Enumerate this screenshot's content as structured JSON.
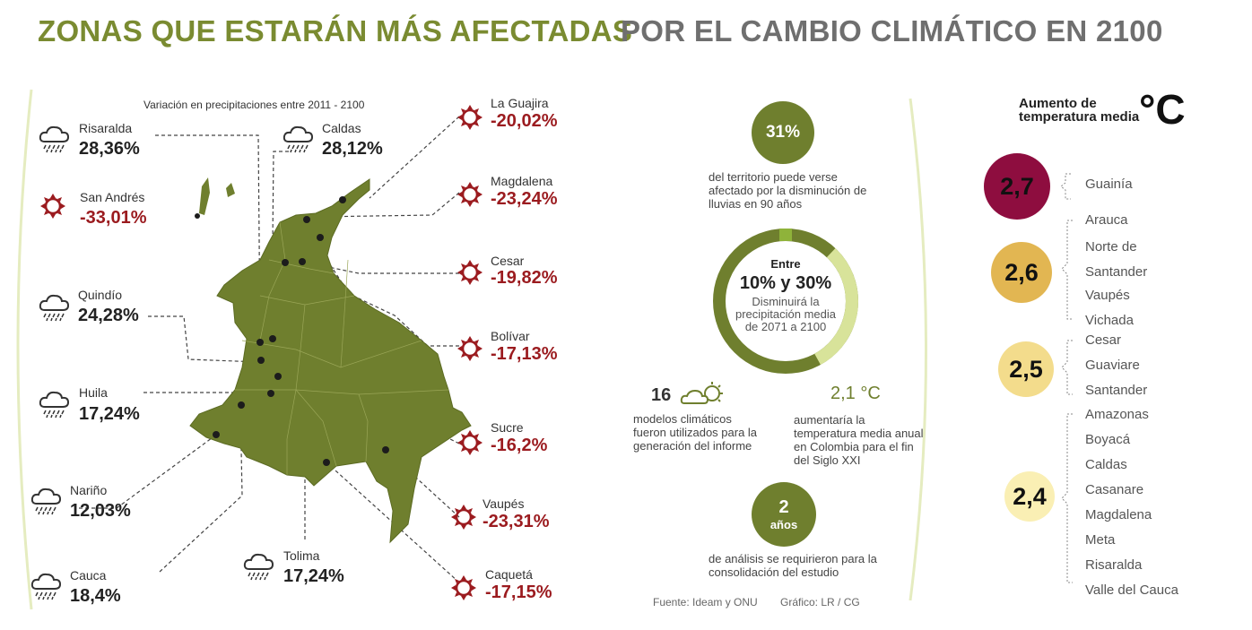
{
  "title": {
    "left": "ZONAS QUE ESTARÁN MÁS AFECTADAS",
    "right": "POR EL CAMBIO CLIMÁTICO EN 2100"
  },
  "map": {
    "subtitle": "Variación en precipitaciones entre 2011 - 2100",
    "rain_regions": [
      {
        "name": "Risaralda",
        "value": "28,36%"
      },
      {
        "name": "Caldas",
        "value": "28,12%"
      },
      {
        "name": "Quindío",
        "value": "24,28%"
      },
      {
        "name": "Huila",
        "value": "17,24%"
      },
      {
        "name": "Nariño",
        "value": "12,03%"
      },
      {
        "name": "Cauca",
        "value": "18,4%"
      },
      {
        "name": "Tolima",
        "value": "17,24%"
      }
    ],
    "sun_regions": [
      {
        "name": "San Andrés",
        "value": "-33,01%"
      },
      {
        "name": "La Guajira",
        "value": "-20,02%"
      },
      {
        "name": "Magdalena",
        "value": "-23,24%"
      },
      {
        "name": "Cesar",
        "value": "-19,82%"
      },
      {
        "name": "Bolívar",
        "value": "-17,13%"
      },
      {
        "name": "Sucre",
        "value": "-16,2%"
      },
      {
        "name": "Vaupés",
        "value": "-23,31%"
      },
      {
        "name": "Caquetá",
        "value": "-17,15%"
      }
    ]
  },
  "stats": {
    "territory_pct": "31%",
    "territory_text": "del territorio puede verse afectado por la disminución de lluvias en 90 años",
    "donut_fraction": 0.3,
    "donut_top": "Entre",
    "donut_range": "10% y 30%",
    "donut_text": "Disminuirá la precipitación media de 2071 a 2100",
    "models_count": "16",
    "models_text": "modelos climáticos fueron utilizados para la generación del informe",
    "temp_increase": "2,1 °C",
    "temp_text": "aumentaría la temperatura media anual en Colombia para el fin del Siglo XXI",
    "years_num": "2",
    "years_unit": "años",
    "years_text": "de análisis se requirieron para la consolidación del estudio",
    "source": "Fuente: Ideam y ONU",
    "graphic": "Gráfico: LR / CG"
  },
  "temperature": {
    "header": "Aumento de temperatura media",
    "unit": "°C",
    "groups": [
      {
        "value": "2,7",
        "color": "#8e0d3f",
        "cities": [
          "Guainía"
        ]
      },
      {
        "value": "2,6",
        "color": "#e2b652",
        "cities": [
          "Arauca",
          "Norte de",
          "Santander",
          "Vaupés",
          "Vichada"
        ]
      },
      {
        "value": "2,5",
        "color": "#f3dc8c",
        "cities": [
          "Cesar",
          "Guaviare",
          "Santander"
        ]
      },
      {
        "value": "2,4",
        "color": "#faefb4",
        "cities": [
          "Amazonas",
          "Boyacá",
          "Caldas",
          "Casanare",
          "Magdalena",
          "Meta",
          "Risaralda",
          "Valle del Cauca"
        ]
      }
    ]
  },
  "colors": {
    "olive": "#6f7f2e",
    "olive_title": "#7a8b31",
    "dark_red": "#9b1b1f",
    "light_green": "#d8e39a",
    "lime": "#8fb33a"
  }
}
